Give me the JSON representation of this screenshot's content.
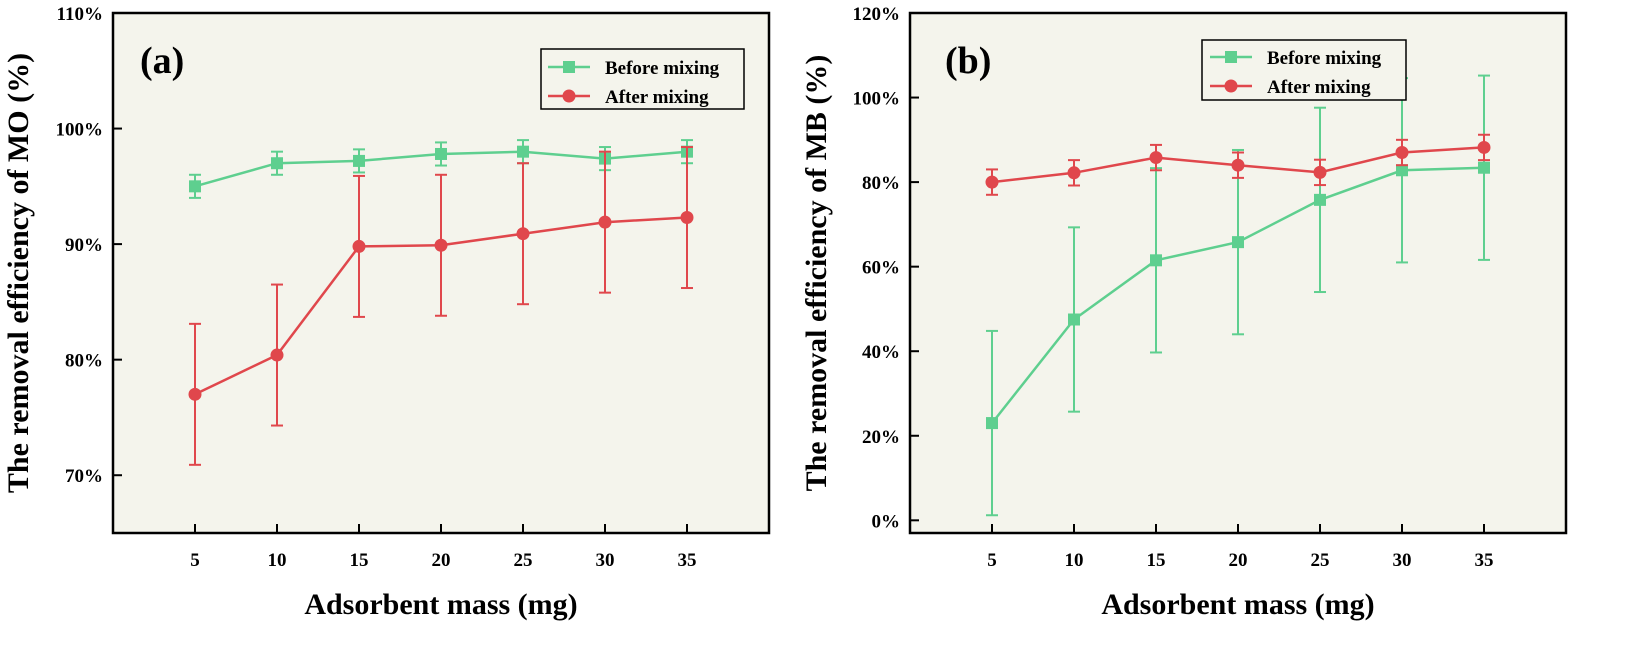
{
  "chart_data": [
    {
      "type": "line",
      "panel_label": "(a)",
      "xlabel": "Adsorbent mass (mg)",
      "ylabel": "The removal efficiency of MO (%)",
      "x": [
        5,
        10,
        15,
        20,
        25,
        30,
        35
      ],
      "xlim": [
        0,
        40
      ],
      "ylim": [
        65,
        110
      ],
      "yticks": [
        70,
        80,
        90,
        100,
        110
      ],
      "ytick_labels": [
        "70%",
        "80%",
        "90%",
        "100%",
        "110%"
      ],
      "legend_position": "top-right",
      "series": [
        {
          "name": "Before mixing",
          "marker": "square",
          "color": "#5ecf8f",
          "values": [
            95.0,
            97.0,
            97.2,
            97.8,
            98.0,
            97.4,
            98.0
          ],
          "errors": [
            1.0,
            1.0,
            1.0,
            1.0,
            1.0,
            1.0,
            1.0
          ]
        },
        {
          "name": "After mixing",
          "marker": "circle",
          "color": "#e0474c",
          "values": [
            77.0,
            80.4,
            89.8,
            89.9,
            90.9,
            91.9,
            92.3
          ],
          "errors": [
            6.1,
            6.1,
            6.1,
            6.1,
            6.1,
            6.1,
            6.1
          ]
        }
      ]
    },
    {
      "type": "line",
      "panel_label": "(b)",
      "xlabel": "Adsorbent mass (mg)",
      "ylabel": "The removal efficiency of MB (%)",
      "x": [
        5,
        10,
        15,
        20,
        25,
        30,
        35
      ],
      "xlim": [
        0,
        40
      ],
      "ylim": [
        -3,
        120
      ],
      "yticks": [
        0,
        20,
        40,
        60,
        80,
        100,
        120
      ],
      "ytick_labels": [
        "0%",
        "20%",
        "40%",
        "60%",
        "80%",
        "100%",
        "120%"
      ],
      "legend_position": "top-right",
      "series": [
        {
          "name": "Before mixing",
          "marker": "square",
          "color": "#5ecf8f",
          "values": [
            23.0,
            47.5,
            61.5,
            65.8,
            75.8,
            82.8,
            83.4
          ],
          "errors": [
            21.8,
            21.8,
            21.8,
            21.8,
            21.8,
            21.8,
            21.8
          ]
        },
        {
          "name": "After mixing",
          "marker": "circle",
          "color": "#e0474c",
          "values": [
            80.0,
            82.2,
            85.8,
            84.0,
            82.3,
            87.0,
            88.2
          ],
          "errors": [
            3.0,
            3.0,
            3.0,
            3.0,
            3.0,
            3.0,
            3.0
          ]
        }
      ]
    }
  ]
}
